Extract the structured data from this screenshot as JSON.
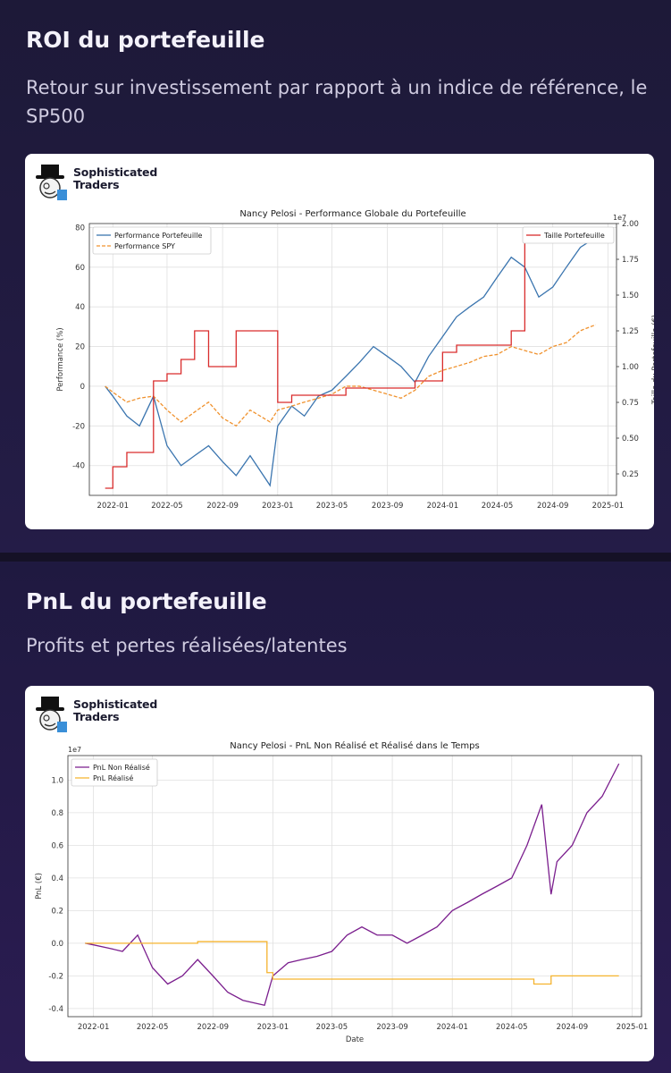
{
  "section1": {
    "title": "ROI du portefeuille",
    "subtitle": "Retour sur investissement par rapport à un indice de référence, le SP500"
  },
  "section2": {
    "title": "PnL du portefeuille",
    "subtitle": "Profits et pertes réalisées/latentes"
  },
  "brand": {
    "line1": "Sophisticated",
    "line2": "Traders",
    "icon": "top-hat-mascot-icon"
  },
  "colors": {
    "perf": "#3b75af",
    "spy": "#f0922e",
    "size": "#d92c2c",
    "pnl_unreal": "#7b1f8e",
    "pnl_real": "#f5b32e"
  },
  "x_ticks": [
    "2022-01",
    "2022-05",
    "2022-09",
    "2023-01",
    "2023-05",
    "2023-09",
    "2024-01",
    "2024-05",
    "2024-09",
    "2025-01"
  ],
  "chart_data": [
    {
      "type": "line",
      "title": "Nancy Pelosi - Performance Globale du Portefeuille",
      "xlabel": "",
      "ylabel": "Performance (%)",
      "y2label": "Taille du Portefeuille (€)",
      "y2_offset_label": "1e7",
      "ylim": [
        -55,
        82
      ],
      "y2lim": [
        0.1,
        2.0
      ],
      "yticks": [
        "-40",
        "-20",
        "0",
        "20",
        "40",
        "60",
        "80"
      ],
      "y2ticks": [
        "0.25",
        "0.50",
        "0.75",
        "1.00",
        "1.25",
        "1.50",
        "1.75",
        "2.00"
      ],
      "grid": true,
      "legend_left": [
        "Performance Portefeuille",
        "Performance SPY"
      ],
      "legend_right": [
        "Taille Portefeuille"
      ],
      "series": [
        {
          "name": "Performance Portefeuille",
          "axis": "left",
          "x": [
            "2021-12-15",
            "2022-01-01",
            "2022-02-01",
            "2022-03-01",
            "2022-04-01",
            "2022-05-01",
            "2022-06-01",
            "2022-07-01",
            "2022-08-01",
            "2022-09-01",
            "2022-10-01",
            "2022-11-01",
            "2022-12-15",
            "2023-01-01",
            "2023-02-01",
            "2023-03-01",
            "2023-04-01",
            "2023-05-01",
            "2023-06-01",
            "2023-07-01",
            "2023-08-01",
            "2023-09-01",
            "2023-10-01",
            "2023-11-01",
            "2023-12-01",
            "2024-01-01",
            "2024-02-01",
            "2024-03-01",
            "2024-04-01",
            "2024-05-01",
            "2024-06-01",
            "2024-07-01",
            "2024-08-01",
            "2024-09-01",
            "2024-10-01",
            "2024-11-01",
            "2024-12-05"
          ],
          "y": [
            0,
            -5,
            -15,
            -20,
            -5,
            -30,
            -40,
            -35,
            -30,
            -38,
            -45,
            -35,
            -50,
            -20,
            -10,
            -15,
            -5,
            -2,
            5,
            12,
            20,
            15,
            10,
            2,
            15,
            25,
            35,
            40,
            45,
            55,
            65,
            60,
            45,
            50,
            60,
            70,
            75
          ]
        },
        {
          "name": "Performance SPY",
          "axis": "left",
          "x": [
            "2021-12-15",
            "2022-01-01",
            "2022-02-01",
            "2022-03-01",
            "2022-04-01",
            "2022-05-01",
            "2022-06-01",
            "2022-07-01",
            "2022-08-01",
            "2022-09-01",
            "2022-10-01",
            "2022-11-01",
            "2022-12-15",
            "2023-01-01",
            "2023-02-01",
            "2023-03-01",
            "2023-04-01",
            "2023-05-01",
            "2023-06-01",
            "2023-07-01",
            "2023-08-01",
            "2023-09-01",
            "2023-10-01",
            "2023-11-01",
            "2023-12-01",
            "2024-01-01",
            "2024-02-01",
            "2024-03-01",
            "2024-04-01",
            "2024-05-01",
            "2024-06-01",
            "2024-07-01",
            "2024-08-01",
            "2024-09-01",
            "2024-10-01",
            "2024-11-01",
            "2024-12-05"
          ],
          "y": [
            0,
            -3,
            -8,
            -6,
            -5,
            -12,
            -18,
            -13,
            -8,
            -16,
            -20,
            -12,
            -18,
            -12,
            -10,
            -8,
            -6,
            -4,
            0,
            0,
            -2,
            -4,
            -6,
            -2,
            5,
            8,
            10,
            12,
            15,
            16,
            20,
            18,
            16,
            20,
            22,
            28,
            31
          ]
        },
        {
          "name": "Taille Portefeuille",
          "axis": "right",
          "step": true,
          "x": [
            "2021-12-15",
            "2022-01-01",
            "2022-02-01",
            "2022-04-01",
            "2022-05-01",
            "2022-06-01",
            "2022-07-01",
            "2022-08-01",
            "2022-10-01",
            "2022-12-01",
            "2023-01-01",
            "2023-02-01",
            "2023-03-01",
            "2023-06-01",
            "2023-11-01",
            "2024-01-01",
            "2024-02-01",
            "2024-06-01",
            "2024-07-01",
            "2024-08-01",
            "2024-12-05"
          ],
          "y": [
            0.15,
            0.3,
            0.4,
            0.9,
            0.95,
            1.05,
            1.25,
            1.0,
            1.25,
            1.25,
            0.75,
            0.8,
            0.8,
            0.85,
            0.9,
            1.1,
            1.15,
            1.25,
            1.9,
            1.9,
            1.9
          ]
        }
      ]
    },
    {
      "type": "line",
      "title": "Nancy Pelosi - PnL Non Réalisé et Réalisé dans le Temps",
      "xlabel": "Date",
      "ylabel": "PnL (€)",
      "y_offset_label": "1e7",
      "ylim": [
        -0.45,
        1.15
      ],
      "yticks": [
        "-0.4",
        "-0.2",
        "0.0",
        "0.2",
        "0.4",
        "0.6",
        "0.8",
        "1.0"
      ],
      "grid": true,
      "legend": [
        "PnL Non Réalisé",
        "PnL Réalisé"
      ],
      "series": [
        {
          "name": "PnL Non Réalisé",
          "x": [
            "2021-12-15",
            "2022-01-01",
            "2022-02-01",
            "2022-03-01",
            "2022-04-01",
            "2022-05-01",
            "2022-06-01",
            "2022-07-01",
            "2022-08-01",
            "2022-09-01",
            "2022-10-01",
            "2022-11-01",
            "2022-12-15",
            "2023-01-01",
            "2023-02-01",
            "2023-03-01",
            "2023-04-01",
            "2023-05-01",
            "2023-06-01",
            "2023-07-01",
            "2023-08-01",
            "2023-09-01",
            "2023-10-01",
            "2023-11-01",
            "2023-12-01",
            "2024-01-01",
            "2024-02-01",
            "2024-03-01",
            "2024-04-01",
            "2024-05-01",
            "2024-06-01",
            "2024-07-01",
            "2024-07-20",
            "2024-08-01",
            "2024-09-01",
            "2024-10-01",
            "2024-11-01",
            "2024-12-05"
          ],
          "y": [
            0,
            -0.01,
            -0.03,
            -0.05,
            0.05,
            -0.15,
            -0.25,
            -0.2,
            -0.1,
            -0.2,
            -0.3,
            -0.35,
            -0.38,
            -0.2,
            -0.12,
            -0.1,
            -0.08,
            -0.05,
            0.05,
            0.1,
            0.05,
            0.05,
            0.0,
            0.05,
            0.1,
            0.2,
            0.25,
            0.3,
            0.35,
            0.4,
            0.6,
            0.85,
            0.3,
            0.5,
            0.6,
            0.8,
            0.9,
            1.1
          ]
        },
        {
          "name": "PnL Réalisé",
          "step": true,
          "x": [
            "2021-12-15",
            "2022-08-01",
            "2022-12-20",
            "2023-01-01",
            "2024-06-15",
            "2024-07-20",
            "2024-12-05"
          ],
          "y": [
            0,
            0.01,
            -0.18,
            -0.22,
            -0.25,
            -0.2,
            -0.2
          ]
        }
      ]
    }
  ]
}
